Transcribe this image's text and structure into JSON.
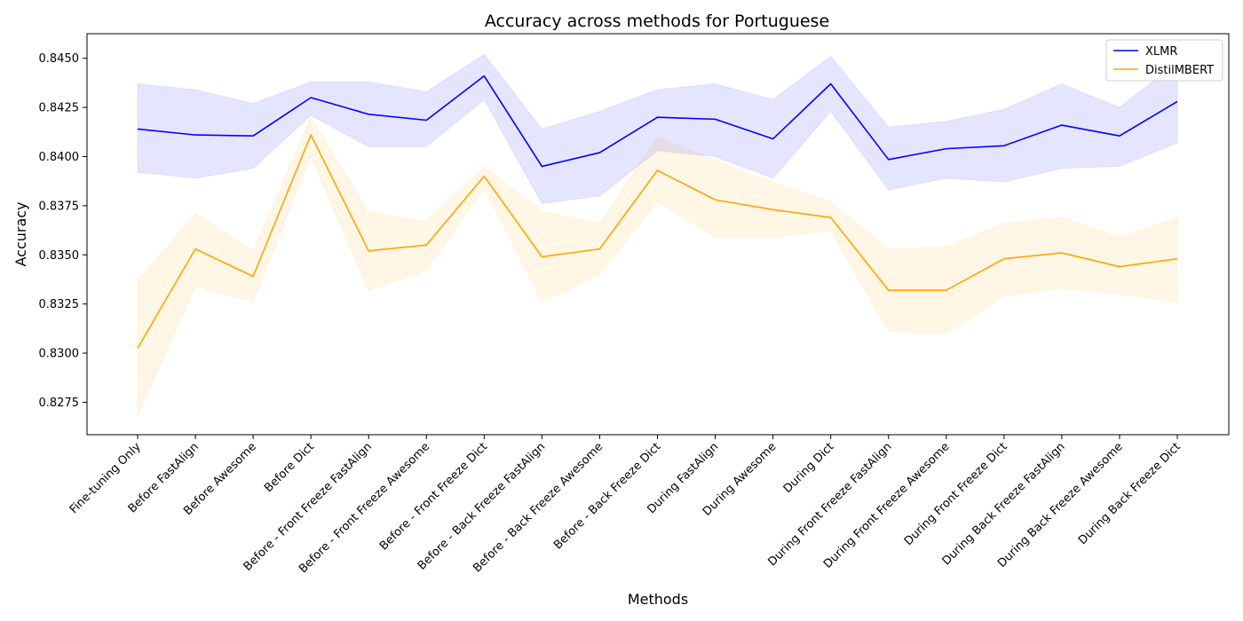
{
  "chart_data": {
    "type": "line",
    "title": "Accuracy across methods for Portuguese",
    "xlabel": "Methods",
    "ylabel": "Accuracy",
    "ylim": [
      0.82585,
      0.84625
    ],
    "yticks": [
      "0.8275",
      "0.8300",
      "0.8325",
      "0.8350",
      "0.8375",
      "0.8400",
      "0.8425",
      "0.8450"
    ],
    "grid": false,
    "legend_position": "top-right",
    "categories": [
      "Fine-tuning Only",
      "Before FastAlign",
      "Before Awesome",
      "Before Dict",
      "Before - Front Freeze FastAlign",
      "Before - Front Freeze Awesome",
      "Before - Front Freeze Dict",
      "Before - Back Freeze FastAlign",
      "Before - Back Freeze Awesome",
      "Before - Back Freeze Dict",
      "During FastAlign",
      "During Awesome",
      "During Dict",
      "During Front Freeze FastAlign",
      "During Front Freeze Awesome",
      "During Front Freeze Dict",
      "During Back Freeze FastAlign",
      "During Back Freeze Awesome",
      "During Back Freeze Dict"
    ],
    "series": [
      {
        "name": "XLMR",
        "color": "#0000ff",
        "band_color": "#0000ff",
        "values": [
          0.8414,
          0.8411,
          0.84105,
          0.843,
          0.84215,
          0.84185,
          0.8441,
          0.8395,
          0.8402,
          0.842,
          0.8419,
          0.8409,
          0.8437,
          0.83985,
          0.8404,
          0.84055,
          0.8416,
          0.84105,
          0.8428
        ],
        "lower": [
          0.8392,
          0.8389,
          0.8394,
          0.8421,
          0.8405,
          0.8405,
          0.8429,
          0.8376,
          0.838,
          0.8403,
          0.84,
          0.8389,
          0.8423,
          0.8383,
          0.8389,
          0.8387,
          0.8394,
          0.8395,
          0.8407
        ],
        "upper": [
          0.8437,
          0.8434,
          0.8427,
          0.8438,
          0.8438,
          0.8433,
          0.8452,
          0.8414,
          0.8423,
          0.8434,
          0.8437,
          0.8429,
          0.8451,
          0.8415,
          0.8418,
          0.8424,
          0.8437,
          0.8425,
          0.8448
        ]
      },
      {
        "name": "DistilMBERT",
        "color": "#ffa500",
        "band_color": "#ffa500",
        "values": [
          0.83025,
          0.8353,
          0.8339,
          0.8411,
          0.8352,
          0.8355,
          0.839,
          0.8349,
          0.8353,
          0.8393,
          0.8378,
          0.8373,
          0.8369,
          0.8332,
          0.8332,
          0.8348,
          0.8351,
          0.8344,
          0.8348
        ],
        "lower": [
          0.8268,
          0.8334,
          0.8326,
          0.84,
          0.8332,
          0.8342,
          0.8384,
          0.8326,
          0.834,
          0.8377,
          0.8359,
          0.8359,
          0.8362,
          0.8311,
          0.831,
          0.8329,
          0.8333,
          0.833,
          0.8326
        ],
        "upper": [
          0.8337,
          0.8371,
          0.8352,
          0.842,
          0.8372,
          0.8367,
          0.8395,
          0.8372,
          0.8366,
          0.841,
          0.8398,
          0.8387,
          0.8377,
          0.8353,
          0.8354,
          0.8366,
          0.8369,
          0.8359,
          0.8369
        ]
      }
    ]
  }
}
